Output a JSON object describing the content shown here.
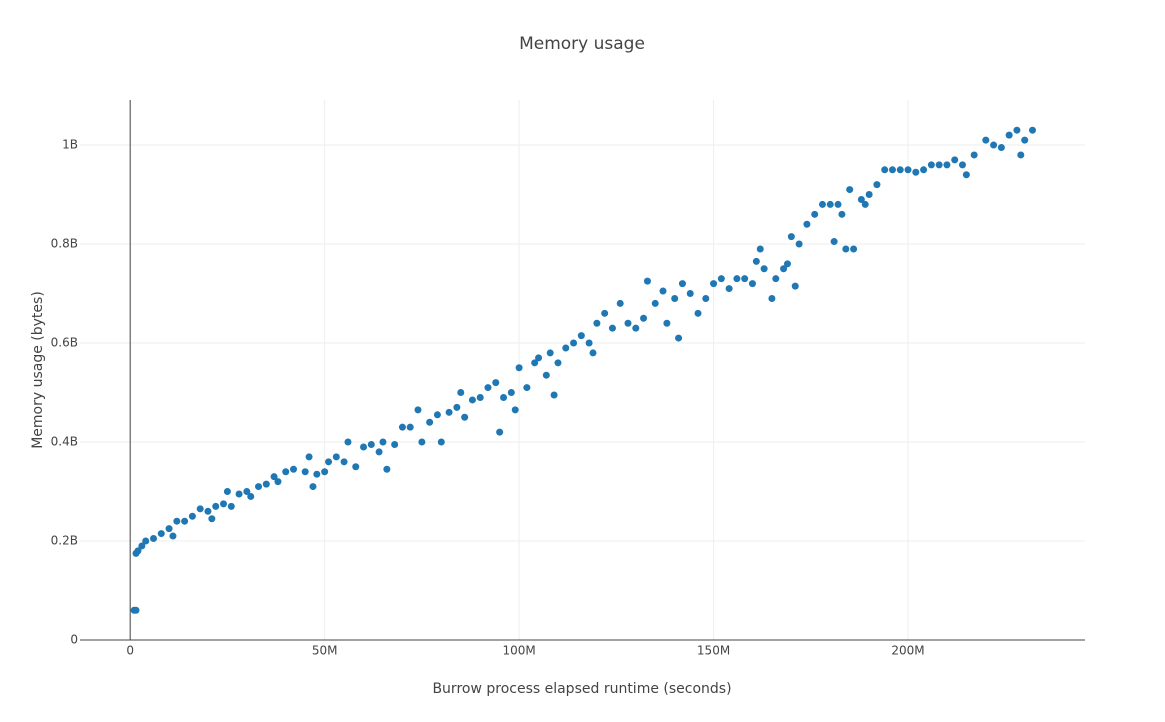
{
  "chart_data": {
    "type": "scatter",
    "title": "Memory usage",
    "x_label": "Burrow process elapsed runtime (seconds)",
    "y_label": "Memory usage (bytes)",
    "color": "#1f77b4",
    "grid": true,
    "xlim": [
      -12900000,
      245500000
    ],
    "ylim": [
      0,
      1091000000
    ],
    "xticks": [
      0,
      {
        "value": 50000000,
        "label": "50M"
      },
      {
        "value": 100000000,
        "label": "100M"
      },
      {
        "value": 150000000,
        "label": "150M"
      },
      {
        "value": 200000000,
        "label": "200M"
      }
    ],
    "yticks": [
      0,
      {
        "value": 200000000,
        "label": "0.2B"
      },
      {
        "value": 400000000,
        "label": "0.4B"
      },
      {
        "value": 600000000,
        "label": "0.6B"
      },
      {
        "value": 800000000,
        "label": "0.8B"
      },
      {
        "value": 1000000000,
        "label": "1B"
      }
    ],
    "x": [
      1000000,
      1500000,
      1500000,
      2000000,
      3000000,
      4000000,
      6000000,
      8000000,
      10000000,
      11000000,
      12000000,
      14000000,
      16000000,
      18000000,
      20000000,
      21000000,
      22000000,
      24000000,
      25000000,
      26000000,
      28000000,
      30000000,
      31000000,
      33000000,
      35000000,
      37000000,
      38000000,
      40000000,
      42000000,
      45000000,
      46000000,
      47000000,
      48000000,
      50000000,
      51000000,
      53000000,
      55000000,
      56000000,
      58000000,
      60000000,
      62000000,
      64000000,
      65000000,
      66000000,
      68000000,
      70000000,
      72000000,
      74000000,
      75000000,
      77000000,
      79000000,
      80000000,
      82000000,
      84000000,
      85000000,
      86000000,
      88000000,
      90000000,
      92000000,
      94000000,
      95000000,
      96000000,
      98000000,
      99000000,
      100000000,
      102000000,
      104000000,
      105000000,
      107000000,
      108000000,
      109000000,
      110000000,
      112000000,
      114000000,
      116000000,
      118000000,
      119000000,
      120000000,
      122000000,
      124000000,
      126000000,
      128000000,
      130000000,
      132000000,
      133000000,
      135000000,
      137000000,
      138000000,
      140000000,
      141000000,
      142000000,
      144000000,
      146000000,
      148000000,
      150000000,
      152000000,
      154000000,
      156000000,
      158000000,
      160000000,
      161000000,
      162000000,
      163000000,
      165000000,
      166000000,
      168000000,
      169000000,
      170000000,
      171000000,
      172000000,
      174000000,
      176000000,
      178000000,
      180000000,
      181000000,
      182000000,
      183000000,
      184000000,
      185000000,
      186000000,
      188000000,
      189000000,
      190000000,
      192000000,
      194000000,
      196000000,
      198000000,
      200000000,
      202000000,
      204000000,
      206000000,
      208000000,
      210000000,
      212000000,
      214000000,
      215000000,
      217000000,
      220000000,
      222000000,
      224000000,
      226000000,
      228000000,
      229000000,
      230000000,
      232000000
    ],
    "values": [
      60000000,
      60000000,
      175000000,
      180000000,
      190000000,
      200000000,
      205000000,
      215000000,
      225000000,
      210000000,
      240000000,
      240000000,
      250000000,
      265000000,
      260000000,
      245000000,
      270000000,
      275000000,
      300000000,
      270000000,
      295000000,
      300000000,
      290000000,
      310000000,
      315000000,
      330000000,
      320000000,
      340000000,
      345000000,
      340000000,
      370000000,
      310000000,
      335000000,
      340000000,
      360000000,
      370000000,
      360000000,
      400000000,
      350000000,
      390000000,
      395000000,
      380000000,
      400000000,
      345000000,
      395000000,
      430000000,
      430000000,
      465000000,
      400000000,
      440000000,
      455000000,
      400000000,
      460000000,
      470000000,
      500000000,
      450000000,
      485000000,
      490000000,
      510000000,
      520000000,
      420000000,
      490000000,
      500000000,
      465000000,
      550000000,
      510000000,
      560000000,
      570000000,
      535000000,
      580000000,
      495000000,
      560000000,
      590000000,
      600000000,
      615000000,
      600000000,
      580000000,
      640000000,
      660000000,
      630000000,
      680000000,
      640000000,
      630000000,
      650000000,
      725000000,
      680000000,
      705000000,
      640000000,
      690000000,
      610000000,
      720000000,
      700000000,
      660000000,
      690000000,
      720000000,
      730000000,
      710000000,
      730000000,
      730000000,
      720000000,
      765000000,
      790000000,
      750000000,
      690000000,
      730000000,
      750000000,
      760000000,
      815000000,
      715000000,
      800000000,
      840000000,
      860000000,
      880000000,
      880000000,
      805000000,
      880000000,
      860000000,
      790000000,
      910000000,
      790000000,
      890000000,
      880000000,
      900000000,
      920000000,
      950000000,
      950000000,
      950000000,
      950000000,
      945000000,
      950000000,
      960000000,
      960000000,
      960000000,
      970000000,
      960000000,
      940000000,
      980000000,
      1010000000,
      1000000000,
      995000000,
      1020000000,
      1030000000,
      980000000,
      1010000000,
      1030000000
    ]
  }
}
